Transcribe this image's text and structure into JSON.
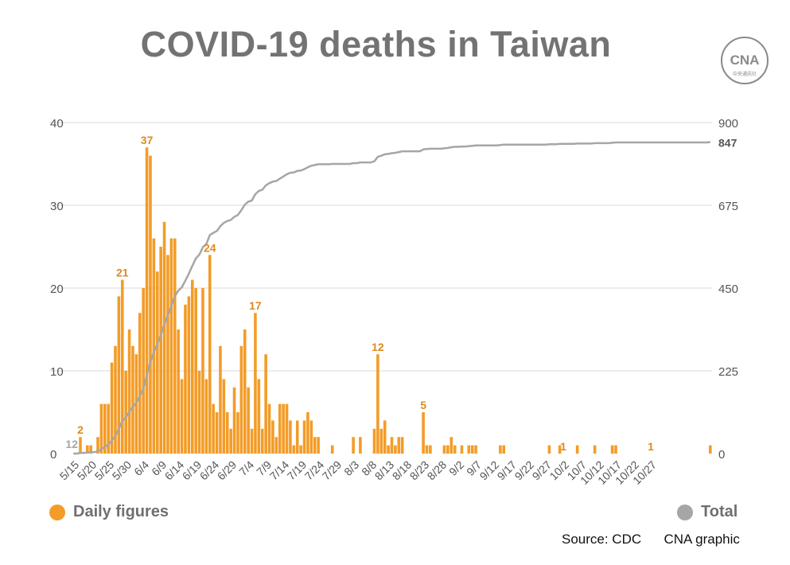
{
  "title": "COVID-19 deaths in Taiwan",
  "logo": {
    "mark": "CNA",
    "caption": "中央通訊社"
  },
  "legend": {
    "daily_label": "Daily figures",
    "total_label": "Total"
  },
  "source": "Source: CDC",
  "credit": "CNA graphic",
  "colors": {
    "bars": "#F39C28",
    "bar_labels": "#E08A1E",
    "line": "#A6A6A6",
    "grid": "#D9D9D9",
    "axis_text": "#555555",
    "title": "#737373"
  },
  "chart_data": {
    "type": "bar",
    "title": "COVID-19 deaths in Taiwan",
    "xlabel": "",
    "ylabel": "",
    "ylim": [
      0,
      40
    ],
    "y2lim": [
      0,
      900
    ],
    "grid": true,
    "legend_position": "bottom",
    "y_ticks": [
      "0",
      "10",
      "20",
      "30",
      "40"
    ],
    "y2_ticks": [
      "0",
      "225",
      "450",
      "675",
      "900"
    ],
    "x_tick_labels": [
      "5/15",
      "5/20",
      "5/25",
      "5/30",
      "6/4",
      "6/9",
      "6/14",
      "6/19",
      "6/24",
      "6/29",
      "7/4",
      "7/9",
      "7/14",
      "7/19",
      "7/24",
      "7/29",
      "8/3",
      "8/8",
      "8/13",
      "8/18",
      "8/23",
      "8/28",
      "9/2",
      "9/7",
      "9/12",
      "9/17",
      "9/22",
      "9/27",
      "10/2",
      "10/7",
      "10/12",
      "10/17",
      "10/22",
      "10/27"
    ],
    "series": [
      {
        "name": "Daily figures",
        "type": "bar",
        "axis": "left",
        "values": [
          0,
          0,
          2,
          0,
          1,
          1,
          0,
          2,
          6,
          6,
          6,
          11,
          13,
          19,
          21,
          10,
          15,
          13,
          12,
          17,
          20,
          37,
          36,
          26,
          22,
          25,
          28,
          24,
          26,
          26,
          15,
          9,
          18,
          19,
          21,
          20,
          10,
          20,
          9,
          24,
          6,
          5,
          13,
          9,
          5,
          3,
          8,
          5,
          13,
          15,
          8,
          3,
          17,
          9,
          3,
          12,
          6,
          4,
          2,
          6,
          6,
          6,
          4,
          1,
          4,
          1,
          4,
          5,
          4,
          2,
          2,
          0,
          0,
          0,
          1,
          0,
          0,
          0,
          0,
          0,
          2,
          0,
          2,
          0,
          0,
          0,
          3,
          12,
          3,
          4,
          1,
          2,
          1,
          2,
          2,
          0,
          0,
          0,
          0,
          0,
          5,
          1,
          1,
          0,
          0,
          0,
          1,
          1,
          2,
          1,
          0,
          1,
          0,
          1,
          1,
          1,
          0,
          0,
          0,
          0,
          0,
          0,
          1,
          1,
          0,
          0,
          0,
          0,
          0,
          0,
          0,
          0,
          0,
          0,
          0,
          0,
          1,
          0,
          0,
          1,
          0,
          0,
          0,
          0,
          1,
          0,
          0,
          0,
          0,
          1,
          0,
          0,
          0,
          0,
          1,
          1,
          0,
          0,
          0,
          0,
          0,
          0,
          0,
          0,
          0,
          0,
          0,
          0,
          0,
          0,
          0,
          0,
          0,
          0,
          0,
          0,
          0,
          0,
          0,
          0,
          0,
          0,
          1
        ]
      },
      {
        "name": "Total",
        "type": "line",
        "axis": "right",
        "final_value": 847
      }
    ],
    "annotations": [
      {
        "day": 0,
        "text": "12"
      },
      {
        "day": 2,
        "text": "2"
      },
      {
        "day": 14,
        "text": "21"
      },
      {
        "day": 21,
        "text": "37"
      },
      {
        "day": 39,
        "text": "24"
      },
      {
        "day": 52,
        "text": "17"
      },
      {
        "day": 87,
        "text": "12"
      },
      {
        "day": 100,
        "text": "5"
      },
      {
        "day": 140,
        "text": "1"
      },
      {
        "day": 165,
        "text": "1"
      },
      {
        "day": 165,
        "text": "847",
        "axis": "right"
      }
    ]
  }
}
